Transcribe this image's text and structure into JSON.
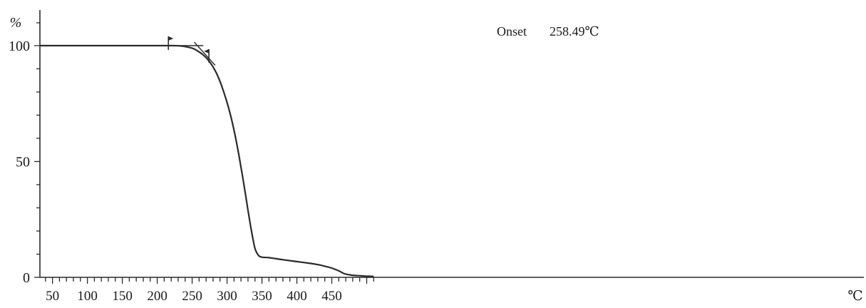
{
  "chart_data": {
    "type": "line",
    "title": "",
    "xlabel": "",
    "ylabel": "",
    "x_unit": "℃",
    "y_unit": "%",
    "xlim": [
      32,
      1212
    ],
    "ylim": [
      0,
      107
    ],
    "x_ticks": [
      "50",
      "100",
      "150",
      "200",
      "250",
      "300",
      "350",
      "400",
      "450"
    ],
    "x_tick_values": [
      50,
      100,
      150,
      200,
      250,
      300,
      350,
      400,
      450
    ],
    "y_ticks": [
      "0",
      "50",
      "100"
    ],
    "y_tick_values": [
      0,
      50,
      100
    ],
    "grid": false,
    "annotation": {
      "label": "Onset",
      "value": "258.49℃"
    },
    "series": [
      {
        "x": [
          32,
          100,
          150,
          200,
          220,
          230,
          240,
          250,
          255,
          260,
          265,
          270,
          275,
          280,
          285,
          290,
          295,
          300,
          305,
          310,
          315,
          320,
          325,
          330,
          335,
          340,
          345,
          350,
          360,
          380,
          400,
          420,
          430,
          440,
          450,
          460,
          465,
          470,
          480,
          490,
          500,
          510
        ],
        "y": [
          100,
          100,
          100,
          100,
          100,
          99.95,
          99.6,
          98.9,
          98.2,
          97.3,
          96.2,
          94.8,
          93.0,
          90.8,
          88.0,
          84.5,
          80.2,
          75.5,
          70.0,
          63.5,
          56.0,
          47.5,
          38.5,
          29.0,
          20.0,
          12.5,
          9.5,
          8.7,
          8.5,
          7.6,
          6.8,
          6.0,
          5.5,
          4.8,
          4.0,
          2.8,
          2.0,
          1.4,
          0.9,
          0.7,
          0.5,
          0.4
        ]
      }
    ],
    "markers": [
      {
        "x": 216,
        "y": 100
      },
      {
        "x": 274,
        "y": 94.5
      }
    ],
    "tangents": [
      {
        "x": [
          216,
          266
        ],
        "y": [
          100,
          100
        ]
      },
      {
        "x": [
          253,
          283
        ],
        "y": [
          101.5,
          91.5
        ]
      }
    ]
  }
}
